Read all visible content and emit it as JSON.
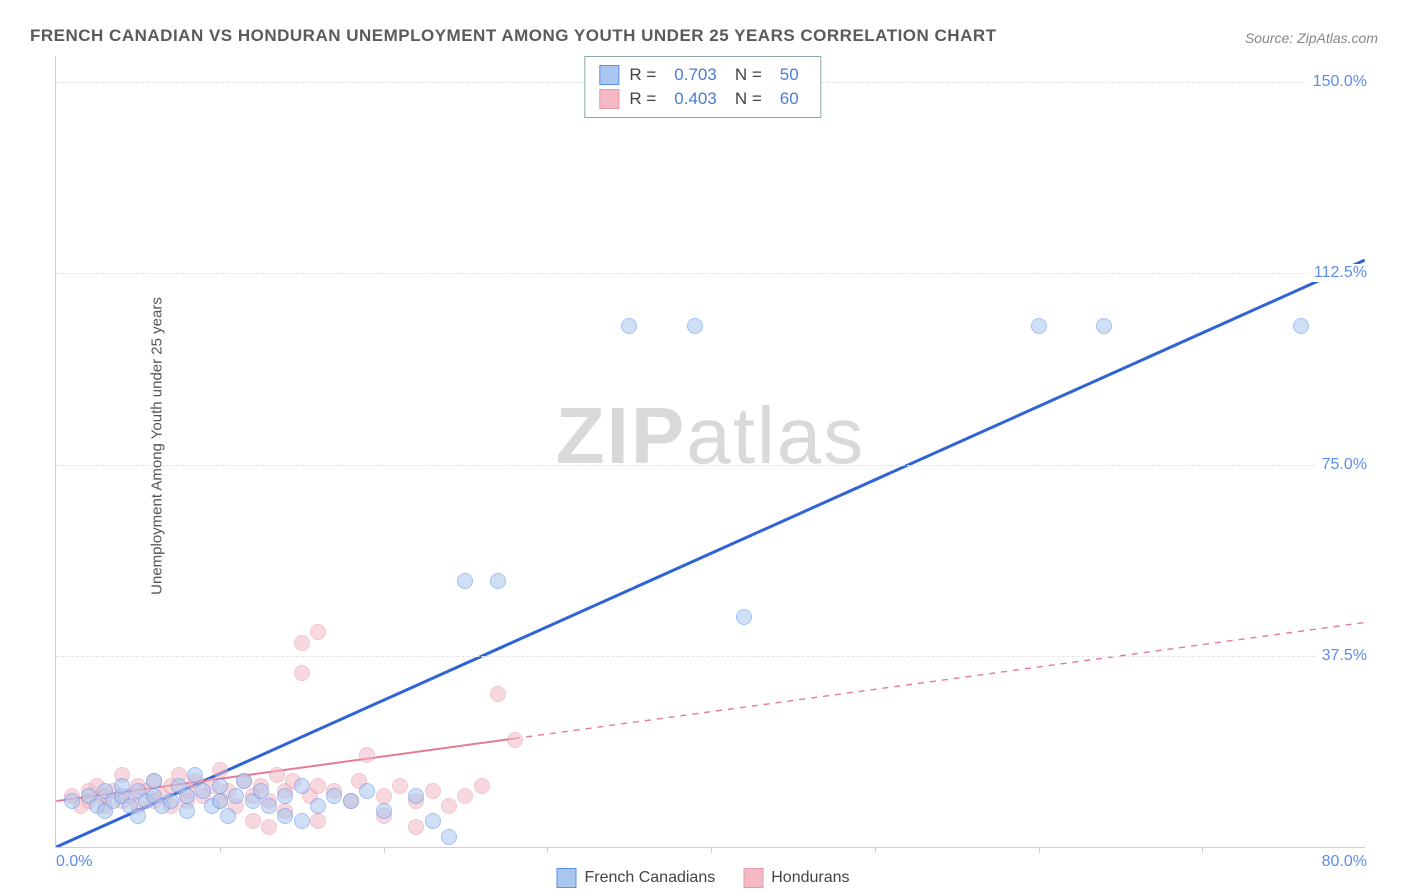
{
  "title": "FRENCH CANADIAN VS HONDURAN UNEMPLOYMENT AMONG YOUTH UNDER 25 YEARS CORRELATION CHART",
  "source": "Source: ZipAtlas.com",
  "ylabel": "Unemployment Among Youth under 25 years",
  "watermark": {
    "bold": "ZIP",
    "light": "atlas"
  },
  "chart": {
    "type": "scatter",
    "xlim": [
      0,
      80
    ],
    "ylim": [
      0,
      155
    ],
    "ytick_step": 37.5,
    "yticks": [
      37.5,
      75.0,
      112.5,
      150.0
    ],
    "xtick_positions": [
      10,
      20,
      30,
      40,
      50,
      60,
      70
    ],
    "x_min_label": "0.0%",
    "x_max_label": "80.0%",
    "background_color": "#ffffff",
    "grid_color": "#e4e4e4",
    "axis_color": "#cfcfcf",
    "tick_label_color": "#5b8def",
    "marker_radius": 8,
    "marker_opacity": 0.55,
    "series": [
      {
        "name": "French Canadians",
        "color_fill": "#a9c6ef",
        "color_stroke": "#5b8def",
        "R": "0.703",
        "N": "50",
        "trend": {
          "x1": 0,
          "y1": 0,
          "x2": 80,
          "y2": 115,
          "solid_until_x": 80,
          "color": "#2f63d6",
          "width": 3
        },
        "points": [
          [
            1,
            9
          ],
          [
            2,
            10
          ],
          [
            2.5,
            8
          ],
          [
            3,
            11
          ],
          [
            3,
            7
          ],
          [
            3.5,
            9
          ],
          [
            4,
            10
          ],
          [
            4,
            12
          ],
          [
            4.5,
            8
          ],
          [
            5,
            11
          ],
          [
            5,
            6
          ],
          [
            5.5,
            9
          ],
          [
            6,
            10
          ],
          [
            6,
            13
          ],
          [
            6.5,
            8
          ],
          [
            7,
            9
          ],
          [
            7.5,
            12
          ],
          [
            8,
            10
          ],
          [
            8,
            7
          ],
          [
            8.5,
            14
          ],
          [
            9,
            11
          ],
          [
            9.5,
            8
          ],
          [
            10,
            9
          ],
          [
            10,
            12
          ],
          [
            10.5,
            6
          ],
          [
            11,
            10
          ],
          [
            11.5,
            13
          ],
          [
            12,
            9
          ],
          [
            12.5,
            11
          ],
          [
            13,
            8
          ],
          [
            14,
            10
          ],
          [
            14,
            6
          ],
          [
            15,
            12
          ],
          [
            15,
            5
          ],
          [
            16,
            8
          ],
          [
            17,
            10
          ],
          [
            18,
            9
          ],
          [
            19,
            11
          ],
          [
            20,
            7
          ],
          [
            22,
            10
          ],
          [
            23,
            5
          ],
          [
            25,
            52
          ],
          [
            27,
            52
          ],
          [
            24,
            2
          ],
          [
            35,
            102
          ],
          [
            39,
            102
          ],
          [
            42,
            45
          ],
          [
            60,
            102
          ],
          [
            64,
            102
          ],
          [
            76,
            102
          ]
        ]
      },
      {
        "name": "Hondurans",
        "color_fill": "#f4b9c5",
        "color_stroke": "#e59aab",
        "R": "0.403",
        "N": "60",
        "trend": {
          "x1": 0,
          "y1": 9,
          "x2": 80,
          "y2": 44,
          "solid_until_x": 28,
          "color": "#e57b93",
          "width": 2
        },
        "points": [
          [
            1,
            10
          ],
          [
            1.5,
            8
          ],
          [
            2,
            11
          ],
          [
            2,
            9
          ],
          [
            2.5,
            12
          ],
          [
            3,
            8
          ],
          [
            3,
            10
          ],
          [
            3.5,
            11
          ],
          [
            4,
            9
          ],
          [
            4,
            14
          ],
          [
            4.5,
            10
          ],
          [
            5,
            12
          ],
          [
            5,
            8
          ],
          [
            5.5,
            11
          ],
          [
            6,
            9
          ],
          [
            6,
            13
          ],
          [
            6.5,
            10
          ],
          [
            7,
            12
          ],
          [
            7,
            8
          ],
          [
            7.5,
            14
          ],
          [
            8,
            11
          ],
          [
            8,
            9
          ],
          [
            8.5,
            13
          ],
          [
            9,
            10
          ],
          [
            9.5,
            12
          ],
          [
            10,
            9
          ],
          [
            10,
            15
          ],
          [
            10.5,
            11
          ],
          [
            11,
            8
          ],
          [
            11.5,
            13
          ],
          [
            12,
            10
          ],
          [
            12,
            5
          ],
          [
            12.5,
            12
          ],
          [
            13,
            9
          ],
          [
            13.5,
            14
          ],
          [
            14,
            11
          ],
          [
            14,
            7
          ],
          [
            14.5,
            13
          ],
          [
            15,
            40
          ],
          [
            15,
            34
          ],
          [
            15.5,
            10
          ],
          [
            16,
            42
          ],
          [
            16,
            12
          ],
          [
            17,
            11
          ],
          [
            18,
            9
          ],
          [
            18.5,
            13
          ],
          [
            19,
            18
          ],
          [
            20,
            10
          ],
          [
            20,
            6
          ],
          [
            21,
            12
          ],
          [
            22,
            9
          ],
          [
            22,
            4
          ],
          [
            23,
            11
          ],
          [
            24,
            8
          ],
          [
            25,
            10
          ],
          [
            26,
            12
          ],
          [
            27,
            30
          ],
          [
            28,
            21
          ],
          [
            16,
            5
          ],
          [
            13,
            4
          ]
        ]
      }
    ]
  },
  "legend_labels": {
    "R_prefix": "R",
    "N_prefix": "N",
    "equals": "="
  }
}
